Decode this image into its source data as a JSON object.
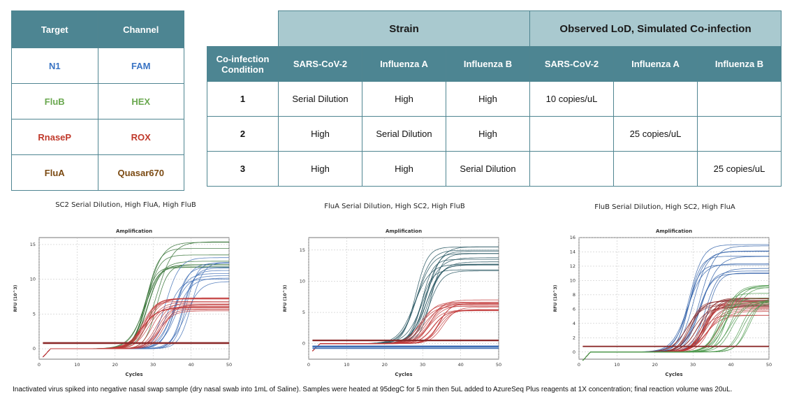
{
  "target_table": {
    "headers": [
      "Target",
      "Channel"
    ],
    "rows": [
      {
        "target": "N1",
        "channel": "FAM",
        "color": "#3a74c4"
      },
      {
        "target": "FluB",
        "channel": "HEX",
        "color": "#6aa84f"
      },
      {
        "target": "RnaseP",
        "channel": "ROX",
        "color": "#c0392b"
      },
      {
        "target": "FluA",
        "channel": "Quasar670",
        "color": "#7b4a12"
      }
    ]
  },
  "lod_table": {
    "group_strain": "Strain",
    "group_lod": "Observed LoD, Simulated Co-infection",
    "condition_header": "Co-infection Condition",
    "columns": [
      "SARS-CoV-2",
      "Influenza A",
      "Influenza B",
      "SARS-CoV-2",
      "Influenza A",
      "Influenza B"
    ],
    "rows": [
      {
        "condition": "1",
        "cells": [
          "Serial Dilution",
          "High",
          "High",
          "10 copies/uL",
          "",
          ""
        ]
      },
      {
        "condition": "2",
        "cells": [
          "High",
          "Serial Dilution",
          "High",
          "",
          "25 copies/uL",
          ""
        ]
      },
      {
        "condition": "3",
        "cells": [
          "High",
          "High",
          "Serial Dilution",
          "",
          "",
          "25 copies/uL"
        ]
      }
    ]
  },
  "chart_data": [
    {
      "type": "line",
      "title": "SC2 Serial Dilution, High FluA, High FluB",
      "subtitle": "Amplification",
      "xlabel": "Cycles",
      "ylabel": "RFU (10^3)",
      "xlim": [
        0,
        50
      ],
      "ylim": [
        -1.5,
        16
      ],
      "xticks": [
        0,
        10,
        20,
        30,
        40,
        50
      ],
      "yticks": [
        0,
        5,
        10,
        15
      ],
      "grid": true,
      "series": [
        {
          "color": "#2f6e2f",
          "plateau": 15.0,
          "midpoint": 29,
          "count": 10,
          "spread": 2.5
        },
        {
          "color": "#3f6fb5",
          "plateau": 12.5,
          "midpoint": 37,
          "count": 12,
          "spread": 4
        },
        {
          "color": "#c23a3a",
          "plateau": 7.0,
          "midpoint": 30,
          "count": 18,
          "spread": 3
        },
        {
          "color": "#8b2b2b",
          "plateau": 0.8,
          "midpoint": 0,
          "count": 4,
          "spread": 0.2,
          "flat": true
        }
      ]
    },
    {
      "type": "line",
      "title": "FluA Serial Dilution, High SC2, High FluB",
      "subtitle": "Amplification",
      "xlabel": "Cycles",
      "ylabel": "RFU (10^3)",
      "xlim": [
        0,
        50
      ],
      "ylim": [
        -2.5,
        17
      ],
      "xticks": [
        0,
        10,
        20,
        30,
        40,
        50
      ],
      "yticks": [
        0,
        5,
        10,
        15
      ],
      "grid": true,
      "series": [
        {
          "color": "#1f4f5a",
          "plateau": 15.5,
          "midpoint": 30,
          "count": 14,
          "spread": 2.5
        },
        {
          "color": "#c23a3a",
          "plateau": 7.0,
          "midpoint": 32,
          "count": 16,
          "spread": 4
        },
        {
          "color": "#3f6fb5",
          "plateau": -0.5,
          "midpoint": 0,
          "count": 5,
          "spread": 0.8,
          "flat": true
        },
        {
          "color": "#8b2b2b",
          "plateau": 0.5,
          "midpoint": 0,
          "count": 3,
          "spread": 0.2,
          "flat": true
        }
      ]
    },
    {
      "type": "line",
      "title": "FluB Serial Dilution, High SC2, High FluA",
      "subtitle": "Amplification",
      "xlabel": "Cycles",
      "ylabel": "RFU (10^3)",
      "xlim": [
        0,
        50
      ],
      "ylim": [
        -1,
        16
      ],
      "xticks": [
        0,
        10,
        20,
        30,
        40,
        50
      ],
      "yticks": [
        0,
        2,
        4,
        6,
        8,
        10,
        12,
        14,
        16
      ],
      "grid": true,
      "series": [
        {
          "color": "#2f5fa8",
          "plateau": 14.5,
          "midpoint": 31,
          "count": 12,
          "spread": 3
        },
        {
          "color": "#8b2b2b",
          "plateau": 7.5,
          "midpoint": 31,
          "count": 14,
          "spread": 3
        },
        {
          "color": "#c23a3a",
          "plateau": 6.8,
          "midpoint": 34,
          "count": 10,
          "spread": 3
        },
        {
          "color": "#4f9a4f",
          "plateau": 9.0,
          "midpoint": 40,
          "count": 14,
          "spread": 5
        },
        {
          "color": "#8b2b2b",
          "plateau": 0.8,
          "midpoint": 0,
          "count": 3,
          "spread": 0.2,
          "flat": true
        }
      ]
    }
  ],
  "footnote": "Inactivated virus spiked into negative nasal swap sample (dry nasal swab into 1mL of Saline). Samples were heated at 95degC for 5 min then 5uL added to AzureSeq Plus reagents at 1X concentration; final reaction volume was 20uL."
}
